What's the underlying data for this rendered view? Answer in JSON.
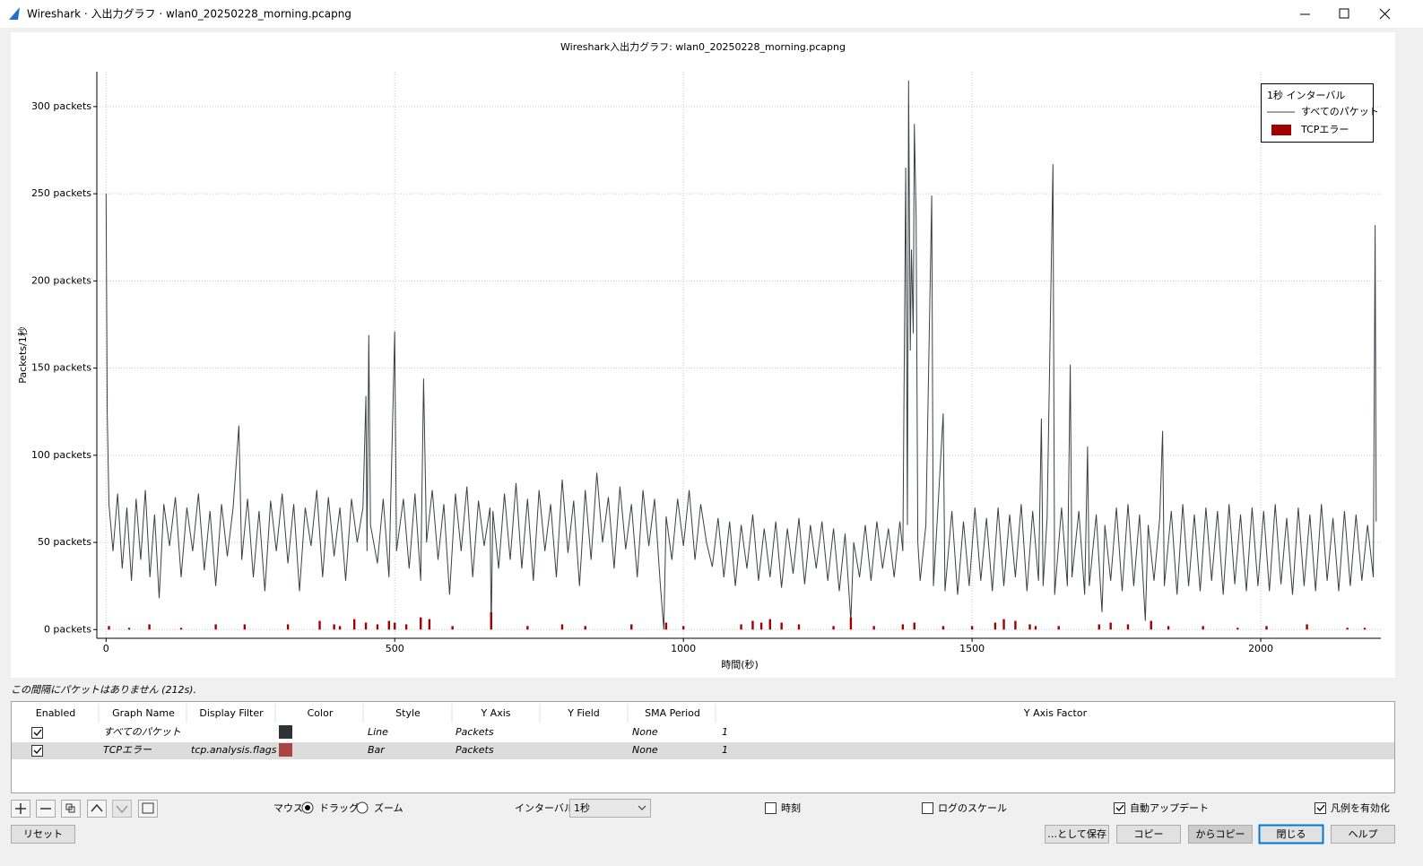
{
  "window": {
    "title": "Wireshark · 入出力グラフ · wlan0_20250228_morning.pcapng"
  },
  "chart_data": {
    "type": "line",
    "title": "Wireshark入出力グラフ: wlan0_20250228_morning.pcapng",
    "x_label": "時間(秒)",
    "y_label": "Packets/1秒",
    "xlim": [
      -16,
      2208
    ],
    "ylim": [
      -5,
      320
    ],
    "xticks": [
      0,
      500,
      1000,
      1500,
      2000
    ],
    "yticks": [
      {
        "value": 0,
        "label": "0 packets"
      },
      {
        "value": 50,
        "label": "50 packets"
      },
      {
        "value": 100,
        "label": "100 packets"
      },
      {
        "value": 150,
        "label": "150 packets"
      },
      {
        "value": 200,
        "label": "200 packets"
      },
      {
        "value": 250,
        "label": "250 packets"
      },
      {
        "value": 300,
        "label": "300 packets"
      }
    ],
    "grid": true,
    "legend": "top-right",
    "legend_title": "1秒 インターバル",
    "series": [
      {
        "name": "すべてのパケット",
        "type": "line",
        "color": "#3c4043",
        "x": [
          0,
          2,
          5,
          12,
          20,
          28,
          36,
          44,
          52,
          60,
          68,
          76,
          84,
          92,
          100,
          110,
          120,
          130,
          140,
          150,
          160,
          170,
          180,
          190,
          200,
          210,
          220,
          230,
          235,
          245,
          255,
          265,
          275,
          285,
          295,
          305,
          315,
          325,
          335,
          345,
          355,
          365,
          375,
          385,
          395,
          405,
          415,
          425,
          435,
          445,
          450,
          452,
          455,
          458,
          470,
          480,
          490,
          500,
          503,
          515,
          525,
          535,
          545,
          550,
          555,
          565,
          575,
          585,
          595,
          605,
          615,
          625,
          635,
          645,
          655,
          665,
          667,
          670,
          680,
          690,
          700,
          710,
          720,
          730,
          740,
          750,
          760,
          770,
          780,
          790,
          800,
          810,
          820,
          830,
          840,
          850,
          860,
          870,
          880,
          890,
          900,
          910,
          920,
          930,
          940,
          950,
          960,
          966,
          970,
          980,
          990,
          1000,
          1010,
          1020,
          1030,
          1040,
          1050,
          1060,
          1070,
          1080,
          1090,
          1100,
          1110,
          1120,
          1130,
          1140,
          1150,
          1160,
          1170,
          1180,
          1190,
          1200,
          1210,
          1220,
          1230,
          1240,
          1250,
          1260,
          1270,
          1280,
          1290,
          1295,
          1305,
          1315,
          1325,
          1335,
          1345,
          1355,
          1365,
          1375,
          1380,
          1385,
          1388,
          1390,
          1393,
          1395,
          1398,
          1400,
          1403,
          1406,
          1410,
          1420,
          1430,
          1433,
          1440,
          1450,
          1453,
          1465,
          1475,
          1485,
          1495,
          1505,
          1515,
          1525,
          1535,
          1545,
          1555,
          1565,
          1575,
          1585,
          1595,
          1605,
          1615,
          1620,
          1623,
          1630,
          1640,
          1643,
          1655,
          1665,
          1670,
          1673,
          1685,
          1695,
          1700,
          1703,
          1715,
          1725,
          1730,
          1740,
          1750,
          1760,
          1770,
          1780,
          1790,
          1800,
          1805,
          1815,
          1825,
          1830,
          1833,
          1845,
          1855,
          1865,
          1875,
          1885,
          1895,
          1905,
          1915,
          1925,
          1935,
          1945,
          1955,
          1965,
          1975,
          1985,
          1995,
          2005,
          2015,
          2025,
          2035,
          2045,
          2055,
          2065,
          2075,
          2085,
          2095,
          2105,
          2115,
          2125,
          2135,
          2145,
          2155,
          2165,
          2175,
          2185,
          2195,
          2198,
          2200
        ],
        "values": [
          250,
          124,
          72,
          45,
          78,
          35,
          70,
          28,
          75,
          40,
          80,
          30,
          66,
          18,
          72,
          48,
          76,
          30,
          70,
          45,
          78,
          34,
          68,
          25,
          72,
          42,
          70,
          117,
          40,
          75,
          30,
          68,
          22,
          74,
          45,
          78,
          38,
          72,
          22,
          70,
          48,
          80,
          30,
          76,
          42,
          70,
          28,
          75,
          50,
          70,
          134,
          45,
          169,
          60,
          38,
          75,
          30,
          171,
          45,
          75,
          35,
          78,
          28,
          144,
          50,
          80,
          40,
          72,
          20,
          78,
          45,
          82,
          30,
          74,
          48,
          70,
          0,
          68,
          35,
          78,
          40,
          84,
          35,
          75,
          28,
          80,
          45,
          72,
          30,
          86,
          44,
          74,
          25,
          80,
          40,
          90,
          50,
          76,
          35,
          82,
          46,
          72,
          30,
          80,
          48,
          75,
          26,
          0,
          65,
          40,
          75,
          48,
          80,
          40,
          72,
          50,
          36,
          64,
          30,
          62,
          25,
          60,
          35,
          66,
          28,
          58,
          30,
          62,
          24,
          58,
          32,
          64,
          26,
          60,
          35,
          62,
          28,
          58,
          22,
          55,
          5,
          50,
          30,
          60,
          28,
          62,
          35,
          58,
          30,
          62,
          45,
          265,
          60,
          315,
          160,
          218,
          170,
          290,
          237,
          50,
          28,
          60,
          249,
          25,
          65,
          124,
          22,
          68,
          20,
          62,
          25,
          70,
          28,
          64,
          22,
          70,
          25,
          66,
          30,
          72,
          22,
          68,
          28,
          121,
          25,
          64,
          267,
          20,
          70,
          25,
          152,
          30,
          68,
          20,
          105,
          25,
          66,
          10,
          60,
          28,
          70,
          22,
          72,
          25,
          66,
          5,
          60,
          28,
          64,
          114,
          25,
          68,
          20,
          72,
          25,
          66,
          22,
          70,
          28,
          68,
          20,
          72,
          26,
          66,
          22,
          70,
          25,
          68,
          22,
          72,
          26,
          64,
          20,
          70,
          25,
          66,
          22,
          72,
          28,
          64,
          22,
          68,
          25,
          66,
          28,
          60,
          30,
          232,
          62
        ]
      },
      {
        "name": "TCPエラー",
        "type": "bar",
        "color": "#a00000",
        "x": [
          5,
          40,
          75,
          130,
          190,
          240,
          315,
          370,
          395,
          405,
          430,
          450,
          470,
          490,
          500,
          520,
          545,
          560,
          600,
          667,
          730,
          790,
          830,
          910,
          970,
          1000,
          1100,
          1120,
          1135,
          1150,
          1170,
          1200,
          1260,
          1290,
          1330,
          1380,
          1400,
          1450,
          1500,
          1540,
          1555,
          1575,
          1600,
          1610,
          1650,
          1720,
          1740,
          1770,
          1810,
          1840,
          1900,
          1960,
          2010,
          2080,
          2150,
          2180
        ],
        "values": [
          2,
          1,
          3,
          1,
          3,
          3,
          3,
          5,
          3,
          2,
          6,
          4,
          3,
          5,
          4,
          3,
          7,
          6,
          2,
          10,
          2,
          3,
          2,
          3,
          4,
          2,
          3,
          5,
          4,
          6,
          4,
          3,
          2,
          7,
          2,
          3,
          4,
          2,
          2,
          4,
          6,
          5,
          3,
          2,
          2,
          3,
          4,
          3,
          5,
          2,
          2,
          1,
          2,
          3,
          1,
          1
        ]
      }
    ]
  },
  "status": "この間隔にパケットはありません (212s).",
  "table": {
    "columns": [
      "Enabled",
      "Graph Name",
      "Display Filter",
      "Color",
      "Style",
      "Y Axis",
      "Y Field",
      "SMA Period",
      "Y Axis Factor"
    ],
    "rows": [
      {
        "enabled": true,
        "name": "すべてのパケット",
        "color": "#2f3336",
        "style": "Line",
        "y_axis": "Packets",
        "sma_period": "None",
        "y_axis_factor": 1
      },
      {
        "enabled": true,
        "name": "TCPエラー",
        "display_filter": "tcp.analysis.flags",
        "color": "#a84444",
        "style": "Bar",
        "y_axis": "Packets",
        "sma_period": "None",
        "y_axis_factor": 1
      }
    ]
  },
  "toolbar": {
    "mouse_label": "マウス",
    "mouse_modes": [
      {
        "label": "ドラッグ",
        "selected": true
      },
      {
        "label": "ズーム",
        "selected": false
      }
    ],
    "interval_label": "インターバル",
    "interval": "1秒",
    "checkboxes": [
      {
        "label": "時刻",
        "checked": false
      },
      {
        "label": "ログのスケール",
        "checked": false
      },
      {
        "label": "自動アップデート",
        "checked": true
      },
      {
        "label": "凡例を有効化",
        "checked": true
      }
    ]
  },
  "buttons": [
    {
      "label": "リセット",
      "enabled": true
    },
    {
      "label": "…として保存",
      "enabled": true
    },
    {
      "label": "コピー",
      "enabled": true
    },
    {
      "label": "からコピー",
      "enabled": false
    },
    {
      "label": "閉じる",
      "enabled": true,
      "default": true
    },
    {
      "label": "ヘルプ",
      "enabled": true
    }
  ]
}
